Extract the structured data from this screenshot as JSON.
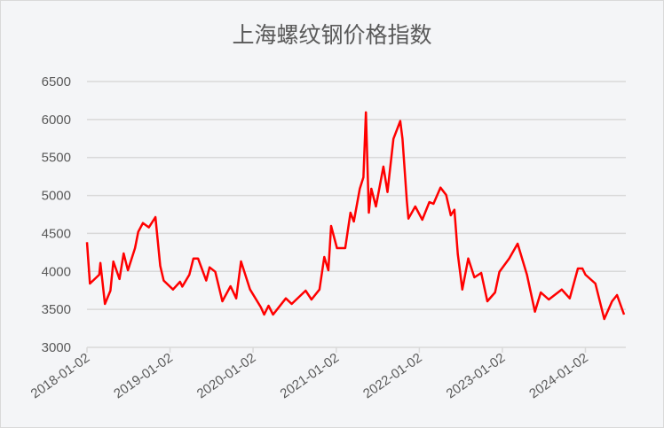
{
  "chart_data": {
    "type": "line",
    "title": "上海螺纹钢价格指数",
    "xlabel": "",
    "ylabel": "",
    "ylim": [
      3000,
      6500
    ],
    "yticks": [
      3000,
      3500,
      4000,
      4500,
      5000,
      5500,
      6000,
      6500
    ],
    "xticks": [
      "2018-01-02",
      "2019-01-02",
      "2020-01-02",
      "2021-01-02",
      "2022-01-02",
      "2023-01-02",
      "2024-01-02"
    ],
    "grid": true,
    "legend": "none",
    "colors": {
      "line": "#ff0000",
      "grid": "#d9d9d9",
      "background": "#f4f5f7",
      "text": "#595959"
    },
    "series": [
      {
        "points": [
          [
            "2018-01-02",
            4385
          ],
          [
            "2018-01-15",
            3840
          ],
          [
            "2018-02-25",
            3957
          ],
          [
            "2018-03-02",
            4112
          ],
          [
            "2018-03-22",
            3572
          ],
          [
            "2018-04-15",
            3747
          ],
          [
            "2018-04-28",
            4130
          ],
          [
            "2018-05-25",
            3900
          ],
          [
            "2018-06-12",
            4237
          ],
          [
            "2018-07-01",
            4015
          ],
          [
            "2018-08-01",
            4307
          ],
          [
            "2018-08-15",
            4520
          ],
          [
            "2018-09-05",
            4637
          ],
          [
            "2018-10-01",
            4580
          ],
          [
            "2018-10-30",
            4715
          ],
          [
            "2018-11-20",
            4073
          ],
          [
            "2018-12-05",
            3880
          ],
          [
            "2019-01-15",
            3762
          ],
          [
            "2019-02-15",
            3863
          ],
          [
            "2019-02-25",
            3800
          ],
          [
            "2019-03-28",
            3957
          ],
          [
            "2019-04-15",
            4170
          ],
          [
            "2019-05-05",
            4170
          ],
          [
            "2019-06-10",
            3880
          ],
          [
            "2019-06-25",
            4053
          ],
          [
            "2019-07-20",
            3995
          ],
          [
            "2019-08-20",
            3607
          ],
          [
            "2019-09-25",
            3805
          ],
          [
            "2019-10-20",
            3645
          ],
          [
            "2019-11-10",
            4132
          ],
          [
            "2019-12-20",
            3762
          ],
          [
            "2020-02-05",
            3530
          ],
          [
            "2020-02-20",
            3432
          ],
          [
            "2020-03-10",
            3548
          ],
          [
            "2020-03-30",
            3432
          ],
          [
            "2020-05-25",
            3645
          ],
          [
            "2020-06-20",
            3572
          ],
          [
            "2020-08-20",
            3747
          ],
          [
            "2020-09-15",
            3630
          ],
          [
            "2020-10-20",
            3762
          ],
          [
            "2020-11-10",
            4190
          ],
          [
            "2020-11-28",
            4015
          ],
          [
            "2020-12-10",
            4598
          ],
          [
            "2021-01-05",
            4307
          ],
          [
            "2021-02-10",
            4307
          ],
          [
            "2021-03-05",
            4773
          ],
          [
            "2021-03-20",
            4657
          ],
          [
            "2021-04-15",
            5088
          ],
          [
            "2021-05-01",
            5240
          ],
          [
            "2021-05-12",
            6095
          ],
          [
            "2021-05-25",
            4773
          ],
          [
            "2021-06-05",
            5088
          ],
          [
            "2021-06-25",
            4855
          ],
          [
            "2021-07-28",
            5380
          ],
          [
            "2021-08-15",
            5045
          ],
          [
            "2021-09-10",
            5745
          ],
          [
            "2021-10-10",
            5980
          ],
          [
            "2021-10-20",
            5745
          ],
          [
            "2021-11-08",
            4928
          ],
          [
            "2021-11-15",
            4695
          ],
          [
            "2021-12-15",
            4855
          ],
          [
            "2022-01-15",
            4680
          ],
          [
            "2022-02-15",
            4913
          ],
          [
            "2022-03-05",
            4890
          ],
          [
            "2022-04-05",
            5103
          ],
          [
            "2022-04-30",
            5007
          ],
          [
            "2022-05-20",
            4738
          ],
          [
            "2022-06-05",
            4812
          ],
          [
            "2022-06-20",
            4228
          ],
          [
            "2022-07-10",
            3762
          ],
          [
            "2022-08-05",
            4170
          ],
          [
            "2022-09-01",
            3922
          ],
          [
            "2022-10-01",
            3980
          ],
          [
            "2022-10-28",
            3607
          ],
          [
            "2022-12-01",
            3723
          ],
          [
            "2022-12-20",
            3995
          ],
          [
            "2023-02-01",
            4170
          ],
          [
            "2023-03-10",
            4365
          ],
          [
            "2023-04-20",
            3957
          ],
          [
            "2023-05-25",
            3470
          ],
          [
            "2023-06-20",
            3723
          ],
          [
            "2023-07-25",
            3630
          ],
          [
            "2023-09-20",
            3762
          ],
          [
            "2023-10-25",
            3645
          ],
          [
            "2023-11-30",
            4038
          ],
          [
            "2023-12-20",
            4038
          ],
          [
            "2024-01-02",
            3957
          ],
          [
            "2024-02-15",
            3840
          ],
          [
            "2024-03-25",
            3373
          ],
          [
            "2024-04-28",
            3607
          ],
          [
            "2024-05-20",
            3688
          ],
          [
            "2024-06-20",
            3432
          ]
        ]
      }
    ]
  }
}
